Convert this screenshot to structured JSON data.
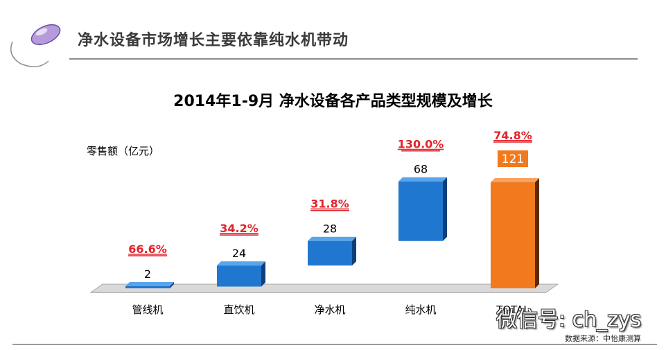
{
  "header": {
    "title": "净水设备市场增长主要依靠纯水机带动"
  },
  "source": "数据来源：中怡康测算",
  "watermark": {
    "text": "微信号: ch_zys"
  },
  "colors": {
    "blue": "#1f77d0",
    "orange": "#f27a1e",
    "growth_red": "#e0242a"
  },
  "chart_data": {
    "type": "bar",
    "title": "2014年1-9月 净水设备各产品类型规模及增长",
    "ylabel": "零售额（亿元）",
    "categories": [
      "管线机",
      "直饮机",
      "净水机",
      "纯水机",
      "TOTAL"
    ],
    "values": [
      2,
      24,
      28,
      68,
      121
    ],
    "growth": [
      "66.6%",
      "34.2%",
      "31.8%",
      "130.0%",
      "74.8%"
    ],
    "value_labels": [
      "2",
      "24",
      "28",
      "68",
      "121"
    ],
    "chart_style": "waterfall",
    "ylim": [
      0,
      121
    ]
  }
}
